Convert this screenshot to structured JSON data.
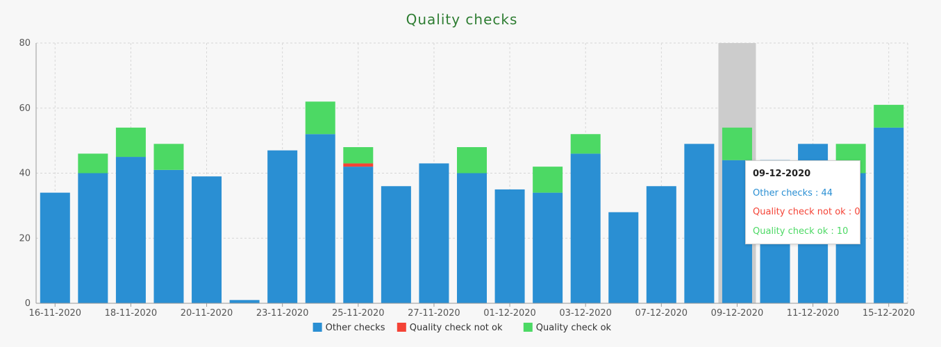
{
  "chart_data": {
    "type": "bar",
    "stacked": true,
    "title": "Quality checks",
    "ylim": [
      0,
      80
    ],
    "yticks": [
      0,
      20,
      40,
      60,
      80
    ],
    "grid": true,
    "legend_position": "bottom",
    "categories": [
      "16-11-2020",
      "17-11-2020",
      "18-11-2020",
      "19-11-2020",
      "20-11-2020",
      "21-11-2020",
      "23-11-2020",
      "24-11-2020",
      "25-11-2020",
      "26-11-2020",
      "27-11-2020",
      "30-11-2020",
      "01-12-2020",
      "02-12-2020",
      "03-12-2020",
      "04-12-2020",
      "07-12-2020",
      "08-12-2020",
      "09-12-2020",
      "10-12-2020",
      "11-12-2020",
      "14-12-2020",
      "15-12-2020"
    ],
    "xtick_labels": [
      "16-11-2020",
      "18-11-2020",
      "20-11-2020",
      "23-11-2020",
      "25-11-2020",
      "27-11-2020",
      "01-12-2020",
      "03-12-2020",
      "07-12-2020",
      "09-12-2020",
      "11-12-2020",
      "15-12-2020"
    ],
    "series": [
      {
        "name": "Other checks",
        "color": "#2a8fd3",
        "values": [
          34,
          40,
          45,
          41,
          39,
          1,
          47,
          52,
          42,
          36,
          43,
          40,
          35,
          34,
          46,
          28,
          36,
          49,
          44,
          44,
          49,
          40,
          54
        ]
      },
      {
        "name": "Quality check not ok",
        "color": "#f44336",
        "values": [
          0,
          0,
          0,
          0,
          0,
          0,
          0,
          0,
          1,
          0,
          0,
          0,
          0,
          0,
          0,
          0,
          0,
          0,
          0,
          0,
          0,
          0,
          0
        ]
      },
      {
        "name": "Quality check ok",
        "color": "#4cd964",
        "values": [
          0,
          6,
          9,
          8,
          0,
          0,
          0,
          10,
          5,
          0,
          0,
          8,
          0,
          8,
          6,
          0,
          0,
          0,
          10,
          0,
          0,
          9,
          7
        ]
      }
    ],
    "highlighted_category": "09-12-2020",
    "tooltip": {
      "date": "09-12-2020",
      "lines": [
        {
          "text": "Other checks : 44",
          "color": "#2a8fd3"
        },
        {
          "text": "Quality check not ok : 0",
          "color": "#f44336"
        },
        {
          "text": "Quality check ok : 10",
          "color": "#4cd964"
        }
      ]
    }
  },
  "title_color": "#2e7d32"
}
